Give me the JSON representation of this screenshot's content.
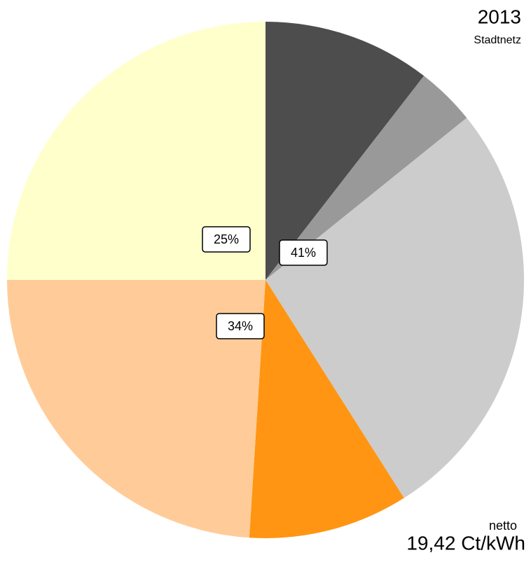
{
  "chart_data": {
    "type": "pie",
    "title": "2013",
    "subtitle": "Stadtnetz",
    "annotations": [
      "netto",
      "19,42 Ct/kWh"
    ],
    "categories": [
      null,
      null,
      null,
      null,
      null,
      null
    ],
    "values": [
      10.5,
      3.7,
      26.8,
      10,
      24,
      25
    ],
    "colors": [
      "#4d4d4d",
      "#999999",
      "#cccccc",
      "#ff9512",
      "#ffcc99",
      "#ffffcc"
    ],
    "groups": [
      {
        "value": 41,
        "label": "41%"
      },
      {
        "value": 34,
        "label": "34%"
      },
      {
        "value": 25,
        "label": "25%"
      }
    ]
  }
}
